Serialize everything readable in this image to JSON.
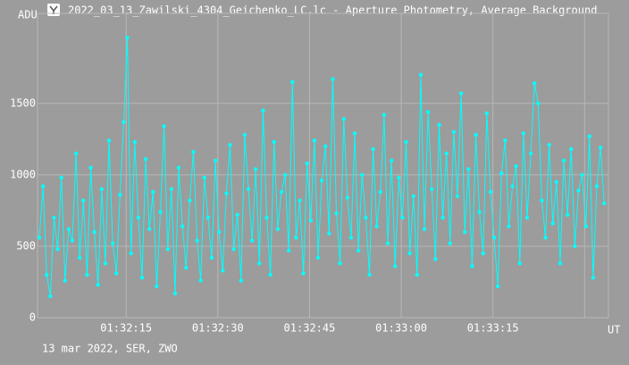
{
  "chart_data": {
    "type": "line",
    "title": "2022_03_13_Zawilski_4304_Geichenko_LC.lc - Aperture Photometry, Average Background",
    "y_label": "ADU",
    "x_label": "UT",
    "note": "13 mar 2022, SER, ZWO",
    "color": "#00ffff",
    "markers": true,
    "grid": true,
    "xlim": [
      5520.5,
      5613.9
    ],
    "ylim": [
      0,
      2130
    ],
    "xticks": [
      {
        "value": 5535,
        "label": "01:32:15"
      },
      {
        "value": 5550,
        "label": "01:32:30"
      },
      {
        "value": 5565,
        "label": "01:32:45"
      },
      {
        "value": 5580,
        "label": "01:33:00"
      },
      {
        "value": 5595,
        "label": "01:33:15"
      },
      {
        "value": 5610,
        "label": null
      }
    ],
    "yticks": [
      0,
      500,
      1000,
      1500
    ],
    "x": [
      5520.8,
      5521.4,
      5522,
      5522.6,
      5523.2,
      5523.8,
      5524.4,
      5525,
      5525.6,
      5526.2,
      5526.8,
      5527.4,
      5528,
      5528.6,
      5529.2,
      5529.8,
      5530.4,
      5531,
      5531.6,
      5532.2,
      5532.8,
      5533.4,
      5534,
      5534.6,
      5535.2,
      5535.8,
      5536.4,
      5537,
      5537.6,
      5538.2,
      5538.8,
      5539.4,
      5540,
      5540.6,
      5541.2,
      5541.8,
      5542.4,
      5543,
      5543.6,
      5544.2,
      5544.8,
      5545.4,
      5546,
      5546.6,
      5547.2,
      5547.8,
      5548.4,
      5549,
      5549.6,
      5550.2,
      5550.8,
      5551.4,
      5552,
      5552.6,
      5553.2,
      5553.8,
      5554.4,
      5555,
      5555.6,
      5556.2,
      5556.8,
      5557.4,
      5558,
      5558.6,
      5559.2,
      5559.8,
      5560.4,
      5561,
      5561.6,
      5562.2,
      5562.8,
      5563.4,
      5564,
      5564.6,
      5565.2,
      5565.8,
      5566.4,
      5567,
      5567.6,
      5568.2,
      5568.8,
      5569.4,
      5570,
      5570.6,
      5571.2,
      5571.8,
      5572.4,
      5573,
      5573.6,
      5574.2,
      5574.8,
      5575.4,
      5576,
      5576.6,
      5577.2,
      5577.8,
      5578.4,
      5579,
      5579.6,
      5580.2,
      5580.8,
      5581.4,
      5582,
      5582.6,
      5583.2,
      5583.8,
      5584.4,
      5585,
      5585.6,
      5586.2,
      5586.8,
      5587.4,
      5588,
      5588.6,
      5589.2,
      5589.8,
      5590.4,
      5591,
      5591.6,
      5592.2,
      5592.8,
      5593.4,
      5594,
      5594.6,
      5595.2,
      5595.8,
      5596.4,
      5597,
      5597.6,
      5598.2,
      5598.8,
      5599.4,
      5600,
      5600.6,
      5601.2,
      5601.8,
      5602.4,
      5603,
      5603.6,
      5604.2,
      5604.8,
      5605.4,
      5606,
      5606.6,
      5607.2,
      5607.8,
      5608.4,
      5609,
      5609.6,
      5610.2,
      5610.8,
      5611.4,
      5612,
      5612.6,
      5613.2
    ],
    "values": [
      560,
      920,
      300,
      150,
      700,
      480,
      980,
      260,
      620,
      540,
      1150,
      420,
      820,
      300,
      1050,
      600,
      230,
      900,
      380,
      1240,
      520,
      310,
      860,
      1370,
      1960,
      450,
      1230,
      700,
      280,
      1110,
      620,
      880,
      220,
      740,
      1340,
      480,
      900,
      170,
      1050,
      640,
      350,
      820,
      1160,
      540,
      260,
      980,
      700,
      420,
      1100,
      600,
      330,
      870,
      1210,
      480,
      720,
      260,
      1280,
      900,
      540,
      1040,
      380,
      1450,
      700,
      300,
      1230,
      620,
      880,
      1000,
      470,
      1650,
      560,
      820,
      310,
      1080,
      680,
      1240,
      420,
      960,
      1200,
      590,
      1670,
      730,
      380,
      1390,
      840,
      560,
      1290,
      470,
      1000,
      700,
      300,
      1180,
      640,
      880,
      1420,
      520,
      1100,
      360,
      980,
      700,
      1230,
      450,
      850,
      300,
      1700,
      620,
      1440,
      900,
      410,
      1350,
      700,
      1150,
      520,
      1300,
      850,
      1570,
      600,
      1040,
      360,
      1280,
      740,
      450,
      1430,
      880,
      560,
      220,
      1010,
      1240,
      640,
      920,
      1060,
      380,
      1290,
      700,
      1150,
      1640,
      1500,
      820,
      560,
      1210,
      660,
      950,
      380,
      1100,
      720,
      1180,
      500,
      890,
      1000,
      640,
      1270,
      280,
      920,
      1190,
      800
    ]
  }
}
